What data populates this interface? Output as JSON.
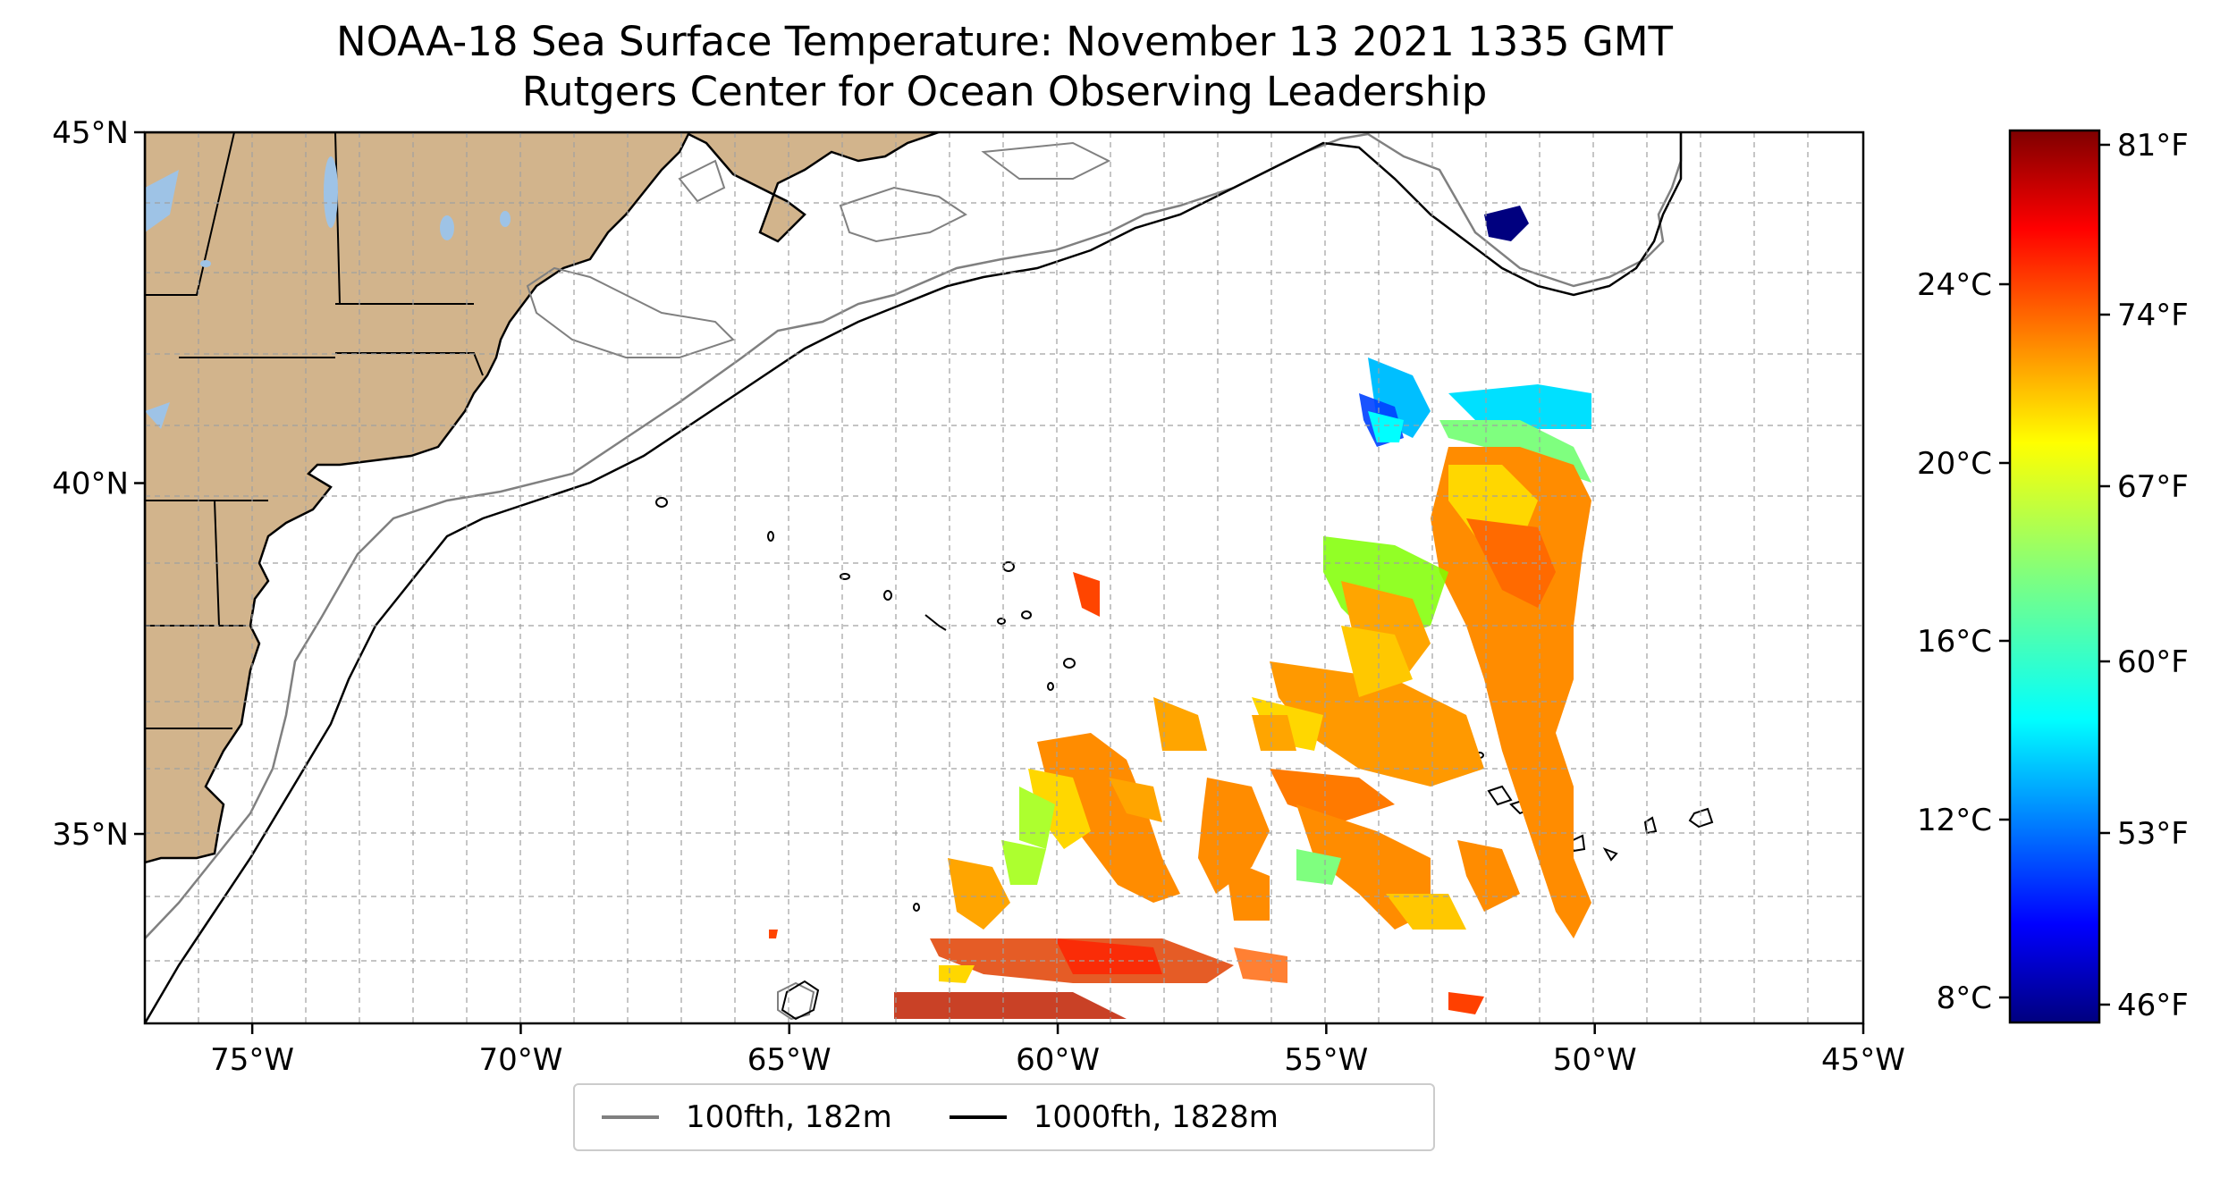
{
  "title": {
    "line1": "NOAA-18 Sea Surface Temperature: November 13 2021 1335 GMT",
    "line2": "Rutgers Center for Ocean Observing Leadership"
  },
  "map": {
    "lon_range": [
      -77,
      -45
    ],
    "lat_range": [
      32.3,
      45
    ],
    "lon_ticks": [
      {
        "value": -75,
        "label": "75°W"
      },
      {
        "value": -70,
        "label": "70°W"
      },
      {
        "value": -65,
        "label": "65°W"
      },
      {
        "value": -60,
        "label": "60°W"
      },
      {
        "value": -55,
        "label": "55°W"
      },
      {
        "value": -50,
        "label": "50°W"
      },
      {
        "value": -45,
        "label": "45°W"
      }
    ],
    "lat_ticks": [
      {
        "value": 45,
        "label": "45°N"
      },
      {
        "value": 40,
        "label": "40°N"
      },
      {
        "value": 35,
        "label": "35°N"
      }
    ],
    "grid": true,
    "land_color": "#d2b48c",
    "water_color": "#9ec3e6",
    "ocean_color": "#ffffff"
  },
  "colorbar": {
    "colormap": "jet",
    "celsius_ticks": [
      "24°C",
      "20°C",
      "16°C",
      "12°C",
      "8°C"
    ],
    "fahrenheit_ticks": [
      "81°F",
      "74°F",
      "67°F",
      "60°F",
      "53°F",
      "46°F"
    ]
  },
  "legend": {
    "items": [
      {
        "label": "100fth, 182m",
        "color": "#808080"
      },
      {
        "label": "1000fth, 1828m",
        "color": "#000000"
      }
    ]
  }
}
